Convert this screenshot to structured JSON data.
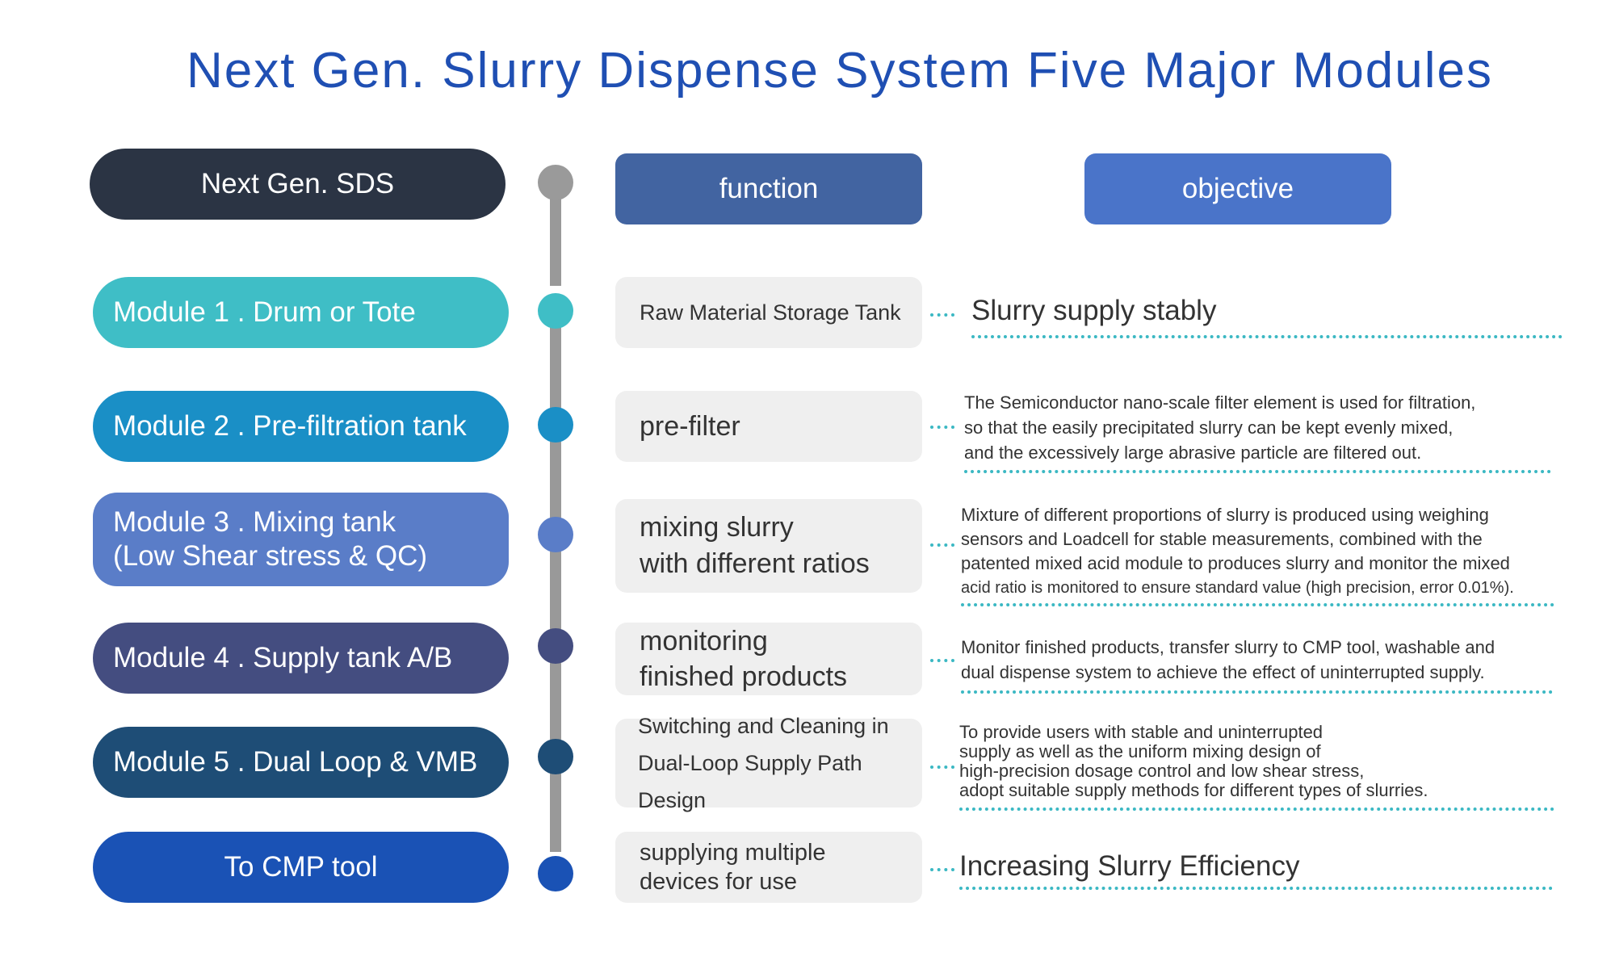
{
  "title": "Next Gen. Slurry Dispense System Five Major Modules",
  "headers": {
    "sds": "Next Gen. SDS",
    "function": "function",
    "objective": "objective"
  },
  "modules": [
    {
      "label": "Module  1 . Drum or Tote",
      "color": "#3fbec6"
    },
    {
      "label": "Module  2 . Pre-filtration tank",
      "color": "#1a8fc6"
    },
    {
      "label_line1": "Module  3 . Mixing tank",
      "label_line2": "(Low Shear stress & QC)",
      "color": "#5a7dc8"
    },
    {
      "label": "Module  4 . Supply tank A/B",
      "color": "#444d80"
    },
    {
      "label": "Module  5  . Dual Loop & VMB",
      "color": "#1e4d76"
    },
    {
      "label": "To CMP tool",
      "color": "#1a52b5"
    }
  ],
  "functions": [
    {
      "line1": "Raw Material Storage Tank"
    },
    {
      "line1": "pre-filter"
    },
    {
      "line1": "mixing slurry",
      "line2": "with different ratios"
    },
    {
      "line1": "monitoring",
      "line2": "finished products"
    },
    {
      "line1": "Switching and Cleaning in",
      "line2": "Dual-Loop Supply Path Design"
    },
    {
      "line1": "supplying multiple",
      "line2": "devices for use"
    }
  ],
  "objectives": [
    {
      "lines": [
        "Slurry supply stably"
      ]
    },
    {
      "lines": [
        "The Semiconductor nano-scale filter element is used for filtration,",
        "so that the easily precipitated slurry can be kept evenly mixed,",
        "and the excessively large abrasive particle are filtered out."
      ]
    },
    {
      "lines": [
        "Mixture of different proportions of slurry is produced using weighing",
        "sensors and Loadcell for stable measurements, combined with the",
        "patented mixed acid module to produces slurry and monitor the mixed",
        "acid ratio is monitored to ensure standard value (high precision, error 0.01%)."
      ]
    },
    {
      "lines": [
        "Monitor finished products, transfer slurry to CMP tool, washable and",
        "dual dispense system to achieve the effect of uninterrupted supply."
      ]
    },
    {
      "lines": [
        "To provide users with stable and uninterrupted",
        "supply as well as the uniform mixing design of",
        "high-precision dosage control and low shear stress,",
        "adopt suitable supply methods for different types of slurries."
      ]
    },
    {
      "lines": [
        "Increasing Slurry Efficiency"
      ]
    }
  ],
  "colors": {
    "title": "#1f4fb3",
    "sds_header": "#2b3444",
    "function_header": "#4264a1",
    "objective_header": "#4a74c9",
    "spine": "#999999",
    "dotted": "#3bb8c3"
  }
}
